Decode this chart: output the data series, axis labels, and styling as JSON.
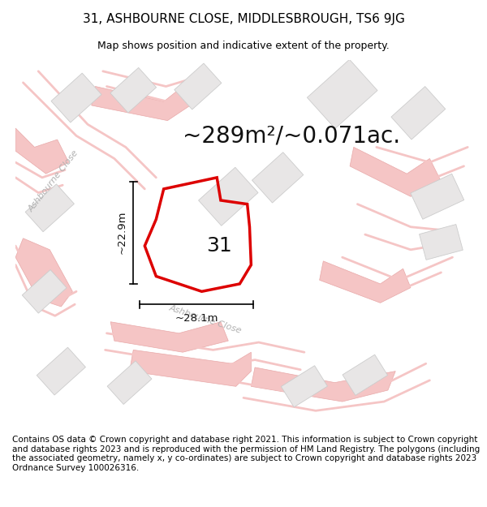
{
  "title": "31, ASHBOURNE CLOSE, MIDDLESBROUGH, TS6 9JG",
  "subtitle": "Map shows position and indicative extent of the property.",
  "area_text": "~289m²/~0.071ac.",
  "width_label": "~28.1m",
  "height_label": "~22.9m",
  "property_number": "31",
  "footer_text": "Contains OS data © Crown copyright and database right 2021. This information is subject to Crown copyright and database rights 2023 and is reproduced with the permission of HM Land Registry. The polygons (including the associated geometry, namely x, y co-ordinates) are subject to Crown copyright and database rights 2023 Ordnance Survey 100026316.",
  "bg_color": "#ffffff",
  "map_bg": "#ffffff",
  "plot_outline_color": "#dd0000",
  "road_color": "#f5c5c5",
  "road_stroke": "#e8a8a8",
  "building_fill": "#e8e6e6",
  "building_stroke": "#cccccc",
  "dim_line_color": "#111111",
  "street_text_color": "#b0b0b0",
  "title_fontsize": 11,
  "subtitle_fontsize": 9,
  "area_fontsize": 20,
  "label_fontsize": 9.5,
  "footer_fontsize": 7.5
}
